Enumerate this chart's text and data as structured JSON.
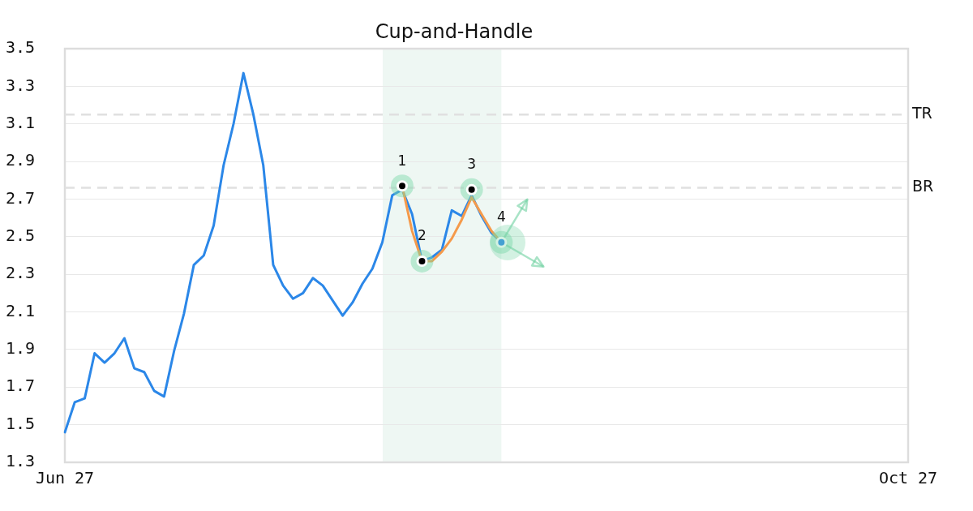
{
  "chart_data": {
    "type": "line",
    "title": "Cup-and-Handle",
    "categories": [
      "Jun 27",
      null,
      null,
      null,
      null,
      null,
      null,
      null,
      null,
      null,
      null,
      null,
      null,
      null,
      null,
      null,
      null,
      null,
      null,
      null,
      null,
      null,
      null,
      null,
      null,
      null,
      null,
      null,
      null,
      null,
      null,
      null,
      null,
      null,
      null,
      null,
      null,
      null,
      null,
      null,
      null,
      null,
      null,
      null,
      null,
      null,
      null,
      null,
      null,
      null,
      null,
      null,
      null,
      null,
      null,
      null,
      null,
      null,
      null,
      null,
      null,
      null,
      null,
      null,
      null,
      null,
      null,
      null,
      null,
      null,
      null,
      null,
      null,
      null,
      null,
      null,
      null,
      null,
      null,
      null,
      null,
      null,
      null,
      null,
      null,
      "Oct 27"
    ],
    "series": [
      {
        "color": "#2b87e8",
        "values": [
          1.46,
          1.62,
          1.64,
          1.88,
          1.83,
          1.88,
          1.96,
          1.8,
          1.78,
          1.68,
          1.65,
          1.89,
          2.09,
          2.35,
          2.4,
          2.56,
          2.88,
          3.1,
          3.37,
          3.15,
          2.88,
          2.35,
          2.24,
          2.17,
          2.2,
          2.28,
          2.24,
          2.16,
          2.08,
          2.15,
          2.25,
          2.33,
          2.47,
          2.72,
          2.75,
          2.62,
          2.37,
          2.39,
          2.43,
          2.64,
          2.61,
          2.72,
          2.61,
          2.52,
          2.47,
          null,
          null,
          null,
          null,
          null,
          null,
          null,
          null,
          null,
          null,
          null,
          null,
          null,
          null,
          null,
          null,
          null,
          null,
          null,
          null,
          null,
          null,
          null,
          null,
          null,
          null,
          null,
          null,
          null,
          null,
          null,
          null,
          null,
          null,
          null,
          null,
          null,
          null,
          null,
          null,
          null
        ]
      },
      {
        "color": "#f59a4a",
        "values": [
          null,
          null,
          null,
          null,
          null,
          null,
          null,
          null,
          null,
          null,
          null,
          null,
          null,
          null,
          null,
          null,
          null,
          null,
          null,
          null,
          null,
          null,
          null,
          null,
          null,
          null,
          null,
          null,
          null,
          null,
          null,
          null,
          null,
          null,
          2.77,
          2.53,
          2.37,
          2.37,
          2.42,
          2.49,
          2.59,
          2.71,
          2.62,
          2.53,
          2.47,
          null,
          null,
          null,
          null,
          null,
          null,
          null,
          null,
          null,
          null,
          null,
          null,
          null,
          null,
          null,
          null,
          null,
          null,
          null,
          null,
          null,
          null,
          null,
          null,
          null,
          null,
          null,
          null,
          null,
          null,
          null,
          null,
          null,
          null,
          null,
          null,
          null,
          null,
          null,
          null,
          null
        ]
      },
      {
        "type": "scatter",
        "marker": "circle",
        "values": [
          null,
          null,
          null,
          null,
          null,
          null,
          null,
          null,
          null,
          null,
          null,
          null,
          null,
          null,
          null,
          null,
          null,
          null,
          null,
          null,
          null,
          null,
          null,
          null,
          null,
          null,
          null,
          null,
          null,
          null,
          null,
          null,
          null,
          null,
          2.77,
          null,
          2.37,
          null,
          null,
          null,
          null,
          2.75,
          null,
          null,
          2.47,
          null,
          null,
          null,
          null,
          null,
          null,
          null,
          null,
          null,
          null,
          null,
          null,
          null,
          null,
          null,
          null,
          null,
          null,
          null,
          null,
          null,
          null,
          null,
          null,
          null,
          null,
          null,
          null,
          null,
          null,
          null,
          null,
          null,
          null,
          null,
          null,
          null,
          null,
          null,
          null,
          null
        ],
        "colors": [
          null,
          null,
          null,
          null,
          null,
          null,
          null,
          null,
          null,
          null,
          null,
          null,
          null,
          null,
          null,
          null,
          null,
          null,
          null,
          null,
          null,
          null,
          null,
          null,
          null,
          null,
          null,
          null,
          null,
          null,
          null,
          null,
          null,
          null,
          "#000000",
          null,
          "#000000",
          null,
          null,
          null,
          null,
          "#000000",
          null,
          null,
          "#2b87e8",
          null,
          null,
          null,
          null,
          null,
          null,
          null,
          null,
          null,
          null,
          null,
          null,
          null,
          null,
          null,
          null,
          null,
          null,
          null,
          null,
          null,
          null,
          null,
          null,
          null,
          null,
          null,
          null,
          null,
          null,
          null,
          null,
          null,
          null,
          null,
          null,
          null,
          null,
          null,
          null,
          null
        ]
      }
    ],
    "ylim": [
      1.3,
      3.5
    ],
    "yticks": [
      1.3,
      1.5,
      1.7,
      1.9,
      2.1,
      2.3,
      2.5,
      2.7,
      2.9,
      3.1,
      3.3,
      3.5
    ],
    "grid": "y",
    "ref_lines": [
      {
        "axis": "y",
        "value": 3.15,
        "label": "TR",
        "color": "#e0e0e0",
        "line_style": "dashed"
      },
      {
        "axis": "y",
        "value": 2.76,
        "label": "BR",
        "color": "#e0e0e0",
        "line_style": "dashed"
      }
    ],
    "annotations": [
      {
        "text": "1",
        "y": 2.77
      },
      {
        "text": "2",
        "y": 2.37
      },
      {
        "text": "3",
        "y": 2.75
      },
      {
        "text": "4",
        "y": 2.47
      }
    ]
  }
}
